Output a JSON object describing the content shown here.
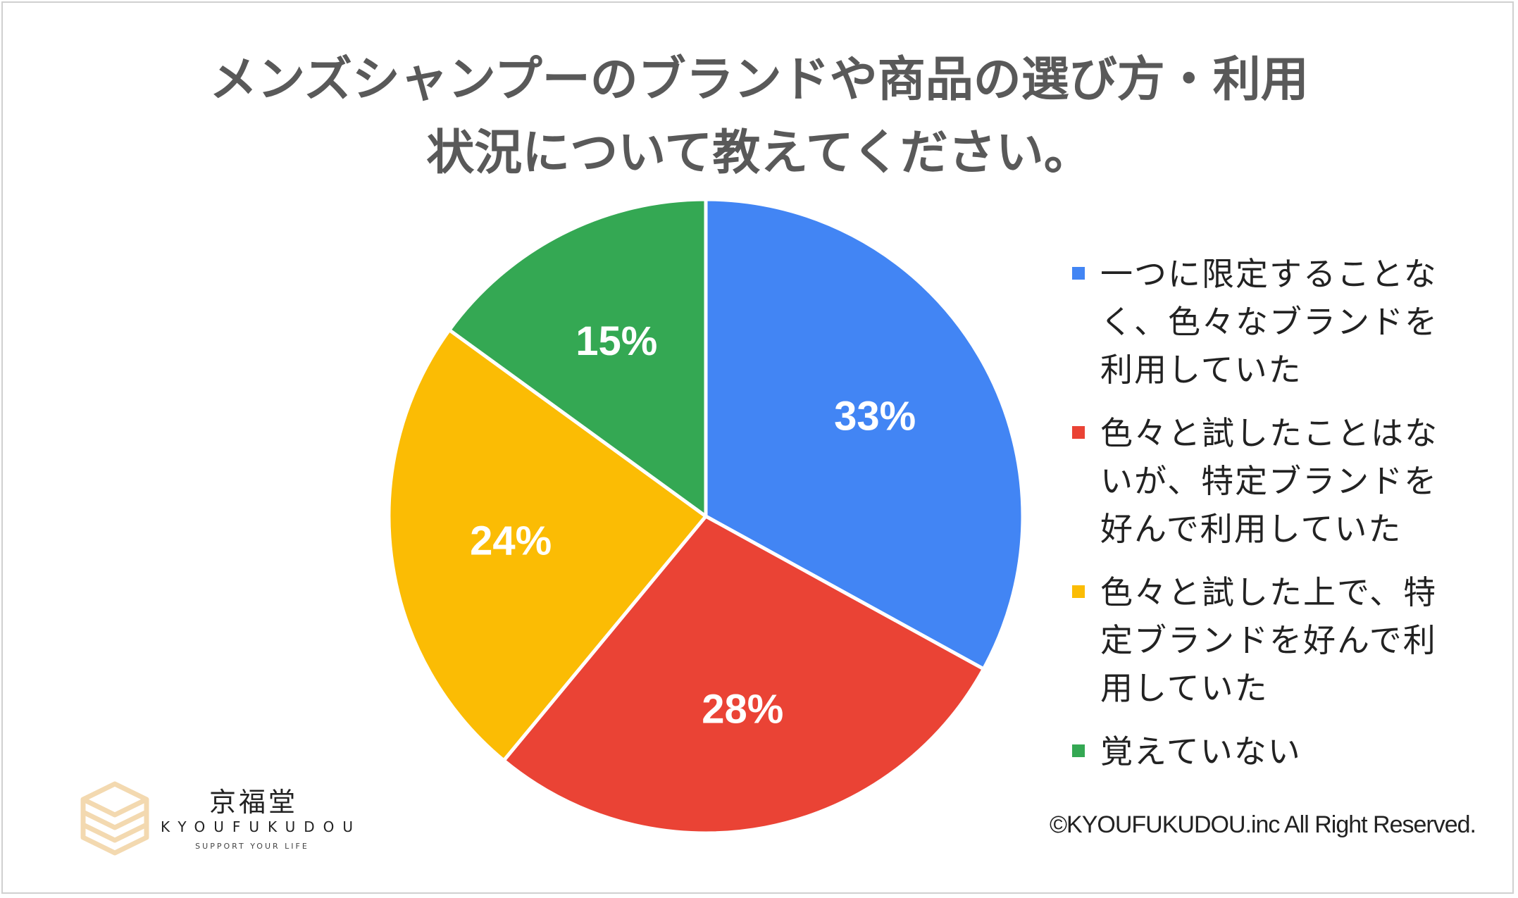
{
  "title_lines": [
    "メンズシャンプーのブランドや商品の選び方・利用",
    "状況について教えてください。"
  ],
  "chart_data": {
    "type": "pie",
    "title": "メンズシャンプーのブランドや商品の選び方・利用状況について教えてください。",
    "unit": "%",
    "slices": [
      {
        "label": "一つに限定することなく、色々なブランドを利用していた",
        "value": 33,
        "display": "33%",
        "color": "#4285f4"
      },
      {
        "label": "色々と試したことはないが、特定ブランドを好んで利用していた",
        "value": 28,
        "display": "28%",
        "color": "#ea4335"
      },
      {
        "label": "色々と試した上で、特定ブランドを好んで利用していた",
        "value": 24,
        "display": "24%",
        "color": "#fbbc04"
      },
      {
        "label": "覚えていない",
        "value": 15,
        "display": "15%",
        "color": "#34a853"
      }
    ],
    "legend_position": "right"
  },
  "legend": [
    "一つに限定することなく、色々なブランドを利用していた",
    "色々と試したことはないが、特定ブランドを好んで利用していた",
    "色々と試した上で、特定ブランドを好んで利用していた",
    "覚えていない"
  ],
  "logo": {
    "name": "京福堂",
    "english": "KYOUFUKUDOU",
    "tagline": "SUPPORT YOUR LIFE",
    "icon": "stacked-boxes-logo-icon",
    "color": "#f3d9b0"
  },
  "copyright": "©KYOUFUKUDOU.inc All Right Reserved."
}
